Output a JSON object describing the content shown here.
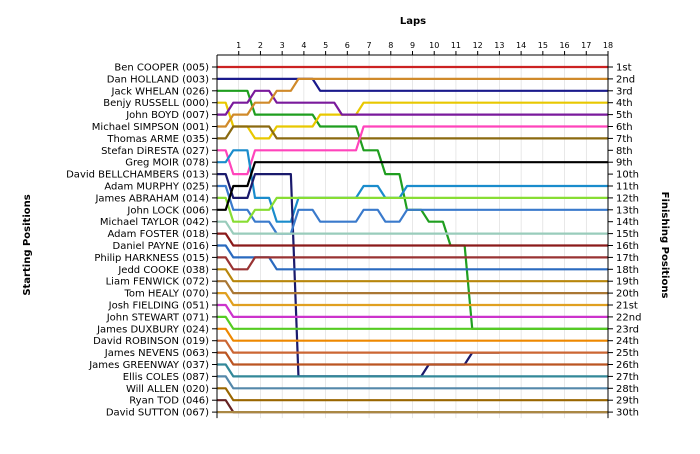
{
  "chart_data": {
    "type": "line",
    "x_axis_title": "Laps",
    "left_axis_title": "Starting Positions",
    "right_axis_title": "Finishing Positions",
    "laps": [
      1,
      2,
      3,
      4,
      5,
      6,
      7,
      8,
      9,
      10,
      11,
      12,
      13,
      14,
      15,
      16,
      17,
      18
    ],
    "xlim": [
      0,
      18
    ],
    "position_range": [
      1,
      30
    ],
    "starting_grid": [
      "Ben COOPER (005)",
      "Dan HOLLAND (003)",
      "Jack WHELAN (026)",
      "Benjy RUSSELL (000)",
      "John BOYD (007)",
      "Michael SIMPSON (001)",
      "Thomas ARME (035)",
      "Stefan DiRESTA (027)",
      "Greg MOIR (078)",
      "David BELLCHAMBERS (013)",
      "Adam MURPHY (025)",
      "James ABRAHAM (014)",
      "John LOCK (006)",
      "Michael TAYLOR (042)",
      "Adam FOSTER (018)",
      "Daniel PAYNE (016)",
      "Philip HARKNESS (015)",
      "Jedd COOKE (038)",
      "Liam FENWICK (072)",
      "Tom HEALY (070)",
      "Josh FIELDING (051)",
      "John STEWART (071)",
      "James DUXBURY (024)",
      "David ROBINSON (019)",
      "James NEVENS (063)",
      "James GREENWAY (037)",
      "Ellis COLES (087)",
      "Will ALLEN (020)",
      "Ryan TOD (046)",
      "David SUTTON (067)"
    ],
    "finishing_positions": [
      "1st",
      "2nd",
      "3rd",
      "4th",
      "5th",
      "6th",
      "7th",
      "8th",
      "9th",
      "10th",
      "11th",
      "12th",
      "13th",
      "14th",
      "15th",
      "16th",
      "17th",
      "18th",
      "19th",
      "20th",
      "21st",
      "22nd",
      "23rd",
      "24th",
      "25th",
      "26th",
      "27th",
      "28th",
      "29th",
      "30th"
    ],
    "series": [
      {
        "color": "#cc2222",
        "positions": [
          1,
          1,
          1,
          1,
          1,
          1,
          1,
          1,
          1,
          1,
          1,
          1,
          1,
          1,
          1,
          1,
          1,
          1,
          1
        ]
      },
      {
        "color": "#1a1a8c",
        "positions": [
          2,
          2,
          2,
          2,
          2,
          3,
          3,
          3,
          3,
          3,
          3,
          3,
          3,
          3,
          3,
          3,
          3,
          3,
          3
        ]
      },
      {
        "color": "#1f9e1f",
        "positions": [
          3,
          3,
          5,
          5,
          5,
          6,
          6,
          8,
          10,
          13,
          14,
          16,
          23,
          23,
          23,
          23,
          23,
          23,
          23
        ]
      },
      {
        "color": "#e8c800",
        "positions": [
          4,
          6,
          7,
          6,
          6,
          5,
          5,
          4,
          4,
          4,
          4,
          4,
          4,
          4,
          4,
          4,
          4,
          4,
          4
        ]
      },
      {
        "color": "#7a1a9c",
        "positions": [
          5,
          4,
          3,
          4,
          4,
          4,
          5,
          5,
          5,
          5,
          5,
          5,
          5,
          5,
          5,
          5,
          5,
          5,
          5
        ]
      },
      {
        "color": "#d08a2a",
        "positions": [
          6,
          5,
          4,
          3,
          2,
          2,
          2,
          2,
          2,
          2,
          2,
          2,
          2,
          2,
          2,
          2,
          2,
          2,
          2
        ]
      },
      {
        "color": "#8b6a10",
        "positions": [
          7,
          6,
          6,
          7,
          7,
          7,
          7,
          7,
          7,
          7,
          7,
          7,
          7,
          7,
          7,
          7,
          7,
          7,
          7
        ]
      },
      {
        "color": "#ff44bb",
        "positions": [
          8,
          10,
          8,
          8,
          8,
          8,
          8,
          6,
          6,
          6,
          6,
          6,
          6,
          6,
          6,
          6,
          6,
          6,
          6
        ]
      },
      {
        "color": "#1a8ccc",
        "positions": [
          9,
          8,
          12,
          14,
          12,
          12,
          12,
          11,
          12,
          11,
          11,
          11,
          11,
          11,
          11,
          11,
          11,
          11,
          11
        ]
      },
      {
        "color": "#1a1a6c",
        "positions": [
          10,
          12,
          10,
          10,
          27,
          27,
          27,
          27,
          27,
          27,
          26,
          26,
          25,
          25
        ]
      },
      {
        "color": "#3a7acc",
        "positions": [
          11,
          13,
          14,
          15,
          13,
          14,
          14,
          13,
          14,
          13,
          13,
          13,
          13,
          13,
          13,
          13,
          13,
          13,
          13
        ]
      },
      {
        "color": "#88dd33",
        "positions": [
          12,
          14,
          13,
          12,
          12,
          12,
          12,
          12,
          12,
          12,
          12,
          12,
          12,
          12,
          12,
          12,
          12,
          12,
          12
        ]
      },
      {
        "color": "#000000",
        "positions": [
          13,
          11,
          9,
          9,
          9,
          9,
          9,
          9,
          9,
          9,
          9,
          9,
          9,
          9,
          9,
          9,
          9,
          9,
          9
        ]
      },
      {
        "color": "#99ccbb",
        "positions": [
          14,
          15,
          15,
          15,
          15,
          15,
          15,
          15,
          15,
          15,
          15,
          15,
          15,
          15,
          15,
          15,
          15,
          15,
          15
        ]
      },
      {
        "color": "#8b1a1a",
        "positions": [
          15,
          16,
          16,
          16,
          16,
          16,
          16,
          16,
          16,
          16,
          16,
          16,
          16,
          16,
          16,
          16,
          16,
          16,
          16
        ]
      },
      {
        "color": "#2a6abf",
        "positions": [
          16,
          17,
          17,
          18,
          18,
          18,
          18,
          18,
          18,
          18,
          18,
          18,
          18,
          18,
          18,
          18,
          18,
          18,
          18
        ]
      },
      {
        "color": "#993333",
        "positions": [
          17,
          18,
          17,
          17,
          17,
          17,
          17,
          17,
          17,
          17,
          17,
          17,
          17,
          17,
          17,
          17,
          17,
          17,
          17
        ]
      },
      {
        "color": "#b8860b",
        "positions": [
          18,
          19,
          19,
          19,
          19,
          19,
          19,
          19,
          19,
          19,
          19,
          19,
          19,
          19,
          19,
          19,
          19,
          19,
          19
        ]
      },
      {
        "color": "#aa7733",
        "positions": [
          19,
          20,
          20,
          20,
          20,
          20,
          20,
          20,
          20,
          20,
          20,
          20,
          20,
          20,
          20,
          20,
          20,
          20,
          20
        ]
      },
      {
        "color": "#e0a020",
        "positions": [
          20,
          21,
          21,
          21,
          21,
          21,
          21,
          21,
          21,
          21,
          21,
          21,
          21,
          21,
          21,
          21,
          21,
          21,
          21
        ]
      },
      {
        "color": "#cc33cc",
        "positions": [
          21,
          22,
          22,
          22,
          22,
          22,
          22,
          22,
          22,
          22,
          22,
          22,
          22,
          22,
          22,
          22,
          22,
          22,
          22
        ]
      },
      {
        "color": "#55cc22",
        "positions": [
          22,
          23,
          23,
          23,
          23,
          23,
          23,
          23,
          23,
          23,
          23,
          23,
          23,
          23,
          23,
          23,
          23,
          23,
          23
        ]
      },
      {
        "color": "#ee8800",
        "positions": [
          23,
          24,
          24,
          24,
          24,
          24,
          24,
          24,
          24,
          24,
          24,
          24,
          24,
          24,
          24,
          24,
          24,
          24,
          24
        ]
      },
      {
        "color": "#cc6633",
        "positions": [
          24,
          25,
          25,
          25,
          25,
          25,
          25,
          25,
          25,
          25,
          25,
          25,
          25,
          25,
          25,
          25,
          25,
          25,
          25
        ]
      },
      {
        "color": "#bb5522",
        "positions": [
          25,
          26,
          26,
          26,
          26,
          26,
          26,
          26,
          26,
          26,
          26,
          26,
          26,
          26,
          26,
          26,
          26,
          26,
          26
        ]
      },
      {
        "color": "#338899",
        "positions": [
          26,
          27,
          27,
          27,
          27,
          27,
          27,
          27,
          27,
          27,
          27,
          27,
          27,
          27,
          27,
          27,
          27,
          27,
          27
        ]
      },
      {
        "color": "#5588aa",
        "positions": [
          27,
          28,
          28,
          28,
          28,
          28,
          28,
          28,
          28,
          28,
          28,
          28,
          28,
          28,
          28,
          28,
          28,
          28,
          28
        ]
      },
      {
        "color": "#996600",
        "positions": [
          28,
          29,
          29,
          29,
          29,
          29,
          29,
          29,
          29,
          29,
          29,
          29,
          29,
          29,
          29,
          29,
          29,
          29,
          29
        ]
      },
      {
        "color": "#662222",
        "positions": [
          29,
          30,
          30,
          30,
          30,
          30,
          30,
          30,
          30,
          30,
          30,
          30,
          30,
          30,
          30,
          30,
          30,
          30,
          30
        ]
      },
      {
        "color": "#aa8844",
        "positions": [
          30,
          30,
          30,
          30,
          30,
          30,
          30,
          30,
          30,
          30,
          30,
          30,
          30,
          30,
          30,
          30,
          30,
          30,
          30
        ]
      }
    ]
  }
}
